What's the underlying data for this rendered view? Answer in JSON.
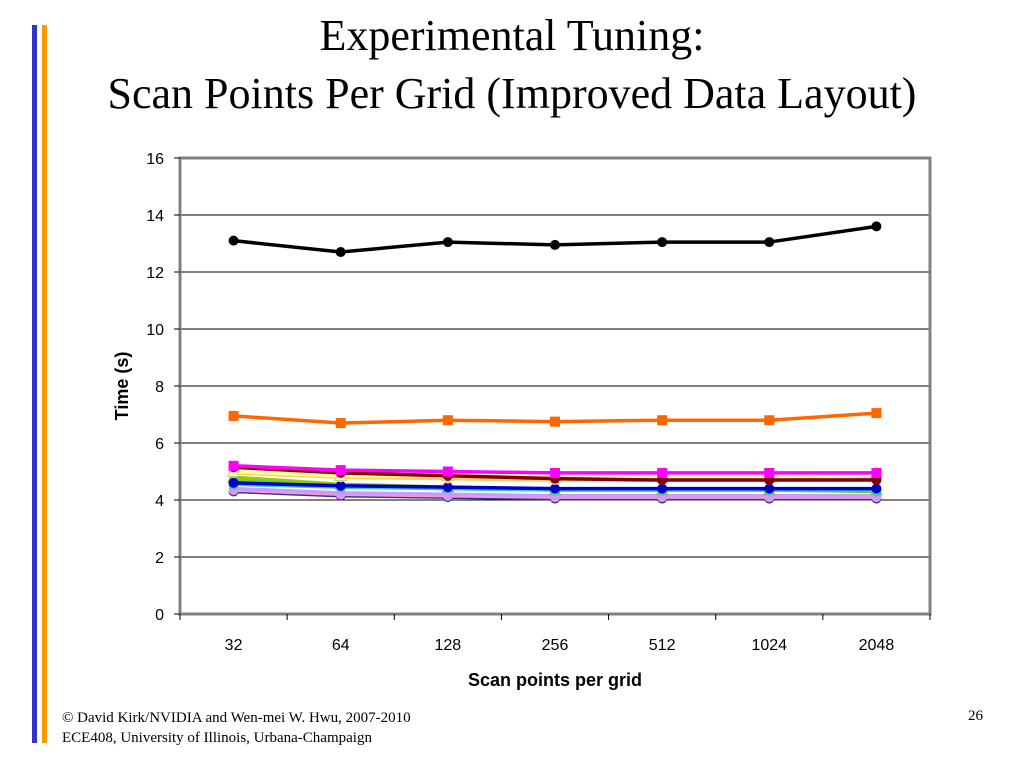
{
  "slide": {
    "title_line1": "Experimental Tuning:",
    "title_line2": "Scan Points Per Grid (Improved Data Layout)",
    "footer_line1": "© David Kirk/NVIDIA and Wen-mei W. Hwu, 2007-2010",
    "footer_line2": "ECE408, University of Illinois, Urbana-Champaign",
    "page_number": "26"
  },
  "chart_data": {
    "type": "line",
    "xlabel": "Scan points per grid",
    "ylabel": "Time (s)",
    "categories": [
      "32",
      "64",
      "128",
      "256",
      "512",
      "1024",
      "2048"
    ],
    "ylim": [
      0,
      16
    ],
    "yticks": [
      0,
      2,
      4,
      6,
      8,
      10,
      12,
      14,
      16
    ],
    "grid": true,
    "series": [
      {
        "color": "#000000",
        "marker": "circle",
        "values": [
          13.1,
          12.7,
          13.05,
          12.95,
          13.05,
          13.05,
          13.6
        ]
      },
      {
        "color": "#ff6600",
        "marker": "square",
        "values": [
          6.95,
          6.7,
          6.8,
          6.75,
          6.8,
          6.8,
          7.05
        ]
      },
      {
        "color": "#ff00ff",
        "marker": "square",
        "values": [
          5.2,
          5.05,
          5.0,
          4.95,
          4.95,
          4.95,
          4.95
        ]
      },
      {
        "color": "#800000",
        "marker": "circle",
        "values": [
          5.15,
          4.95,
          4.85,
          4.75,
          4.7,
          4.7,
          4.7
        ]
      },
      {
        "color": "#ffff99",
        "marker": "triangle",
        "values": [
          5.0,
          4.85,
          4.85,
          4.8,
          4.8,
          4.8,
          4.95
        ]
      },
      {
        "color": "#ffcc66",
        "marker": "circle",
        "values": [
          4.95,
          4.8,
          4.75,
          4.7,
          4.7,
          4.7,
          4.75
        ]
      },
      {
        "color": "#0000cc",
        "marker": "circle",
        "values": [
          4.6,
          4.5,
          4.45,
          4.4,
          4.4,
          4.4,
          4.4
        ]
      },
      {
        "color": "#33cccc",
        "marker": "circle",
        "values": [
          4.55,
          4.45,
          4.4,
          4.35,
          4.35,
          4.35,
          4.35
        ]
      },
      {
        "color": "#66cc33",
        "marker": "circle",
        "values": [
          4.7,
          4.5,
          4.4,
          4.35,
          4.35,
          4.35,
          4.3
        ]
      },
      {
        "color": "#99cc00",
        "marker": "triangle",
        "values": [
          4.8,
          4.55,
          4.45,
          4.35,
          4.35,
          4.35,
          4.35
        ]
      },
      {
        "color": "#cc99ff",
        "marker": "circle",
        "values": [
          4.4,
          4.25,
          4.2,
          4.15,
          4.15,
          4.15,
          4.15
        ]
      },
      {
        "color": "#ff99cc",
        "marker": "circle",
        "values": [
          4.35,
          4.2,
          4.15,
          4.1,
          4.1,
          4.1,
          4.1
        ]
      },
      {
        "color": "#333399",
        "marker": "circle",
        "values": [
          4.3,
          4.15,
          4.1,
          4.05,
          4.05,
          4.05,
          4.05
        ]
      }
    ]
  }
}
